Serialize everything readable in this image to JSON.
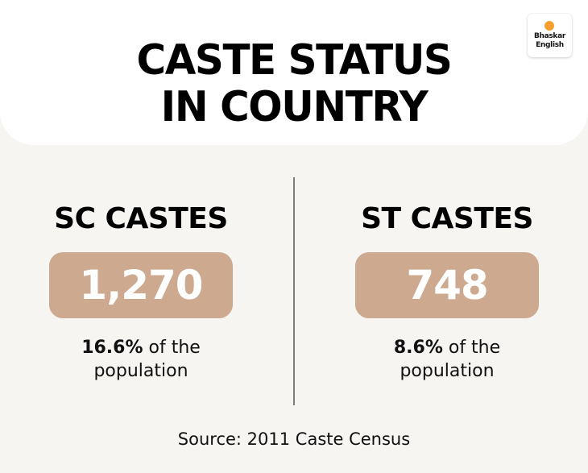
{
  "header": {
    "title_line1": "CASTE STATUS",
    "title_line2": "IN COUNTRY"
  },
  "logo": {
    "line1": "Bhaskar",
    "line2": "English",
    "dot_color": "#f7a030",
    "icon": "orange-dot-icon"
  },
  "sections": [
    {
      "heading": "SC CASTES",
      "value": "1,270",
      "percent": "16.6%",
      "percent_suffix": " of the",
      "line2": "population"
    },
    {
      "heading": "ST CASTES",
      "value": "748",
      "percent": "8.6%",
      "percent_suffix": " of the",
      "line2": "population"
    }
  ],
  "source": "Source: 2011 Caste Census",
  "colors": {
    "background": "#f6f5f2",
    "header_card": "#ffffff",
    "pill": "#cca98f",
    "pill_text": "#ffffff",
    "divider": "#7d7d7b",
    "text": "#000000"
  }
}
